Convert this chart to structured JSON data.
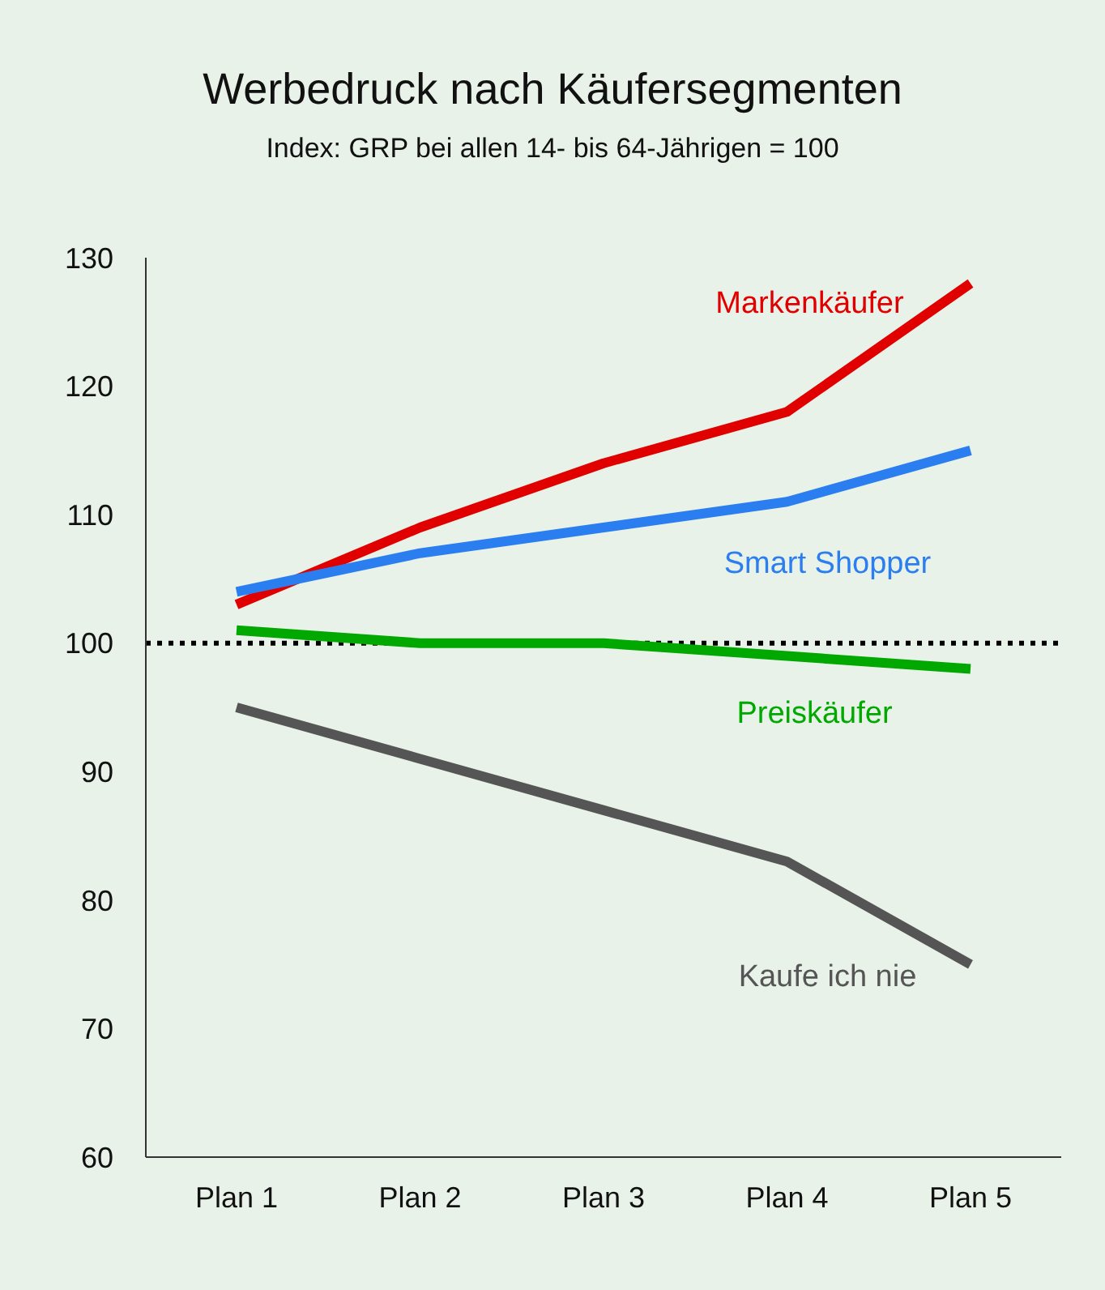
{
  "chart_data": {
    "type": "line",
    "title": "Werbedruck nach Käufersegmenten",
    "subtitle": "Index: GRP bei allen 14- bis 64-Jährigen = 100",
    "categories": [
      "Plan 1",
      "Plan 2",
      "Plan 3",
      "Plan 4",
      "Plan 5"
    ],
    "series": [
      {
        "name": "Markenkäufer",
        "color": "#e00000",
        "values": [
          103,
          109,
          114,
          118,
          128
        ]
      },
      {
        "name": "Smart Shopper",
        "color": "#2a7ef0",
        "values": [
          104,
          107,
          109,
          111,
          115
        ]
      },
      {
        "name": "Preiskäufer",
        "color": "#00a800",
        "values": [
          101,
          100,
          100,
          99,
          98
        ]
      },
      {
        "name": "Kaufe ich nie",
        "color": "#555555",
        "values": [
          95,
          91,
          87,
          83,
          75
        ]
      }
    ],
    "ylim": [
      60,
      130
    ],
    "yticks": [
      60,
      70,
      80,
      90,
      100,
      110,
      120,
      130
    ],
    "ref_lines": [
      {
        "axis": "y",
        "value": 100,
        "color": "#000000",
        "line_style": "dotted"
      }
    ],
    "grid": false,
    "legend": false,
    "marker": "none",
    "line_style": "solid"
  }
}
